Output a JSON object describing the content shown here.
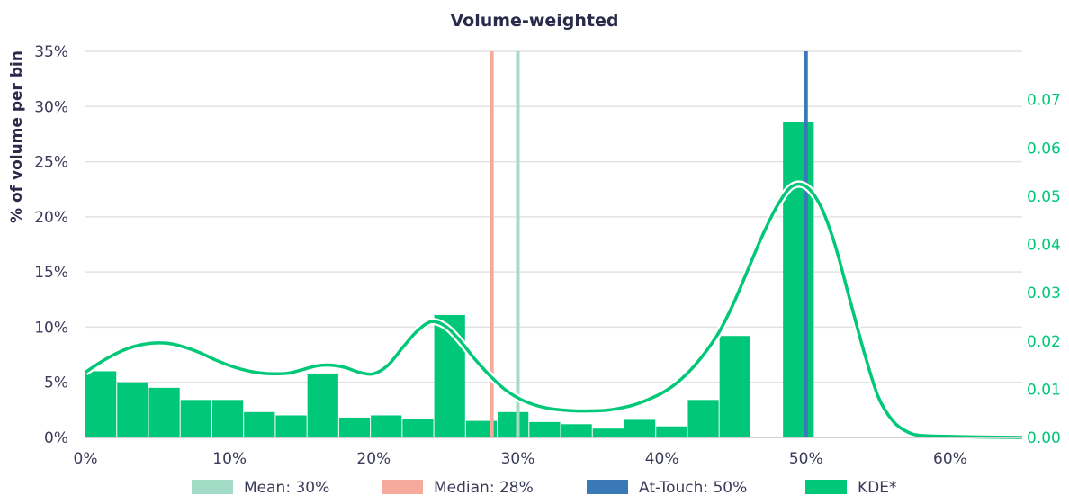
{
  "chart_data": {
    "type": "bar",
    "title": "Volume-weighted",
    "ylabel": "% of volume per bin",
    "xlabel": "",
    "xlim": [
      0,
      65
    ],
    "ylim": [
      0,
      35
    ],
    "y2lim": [
      0,
      0.08
    ],
    "x_ticks": [
      "0%",
      "10%",
      "20%",
      "30%",
      "40%",
      "50%",
      "60%"
    ],
    "y_ticks": [
      "0%",
      "5%",
      "10%",
      "15%",
      "20%",
      "25%",
      "30%",
      "35%"
    ],
    "y2_ticks": [
      "0.00",
      "0.01",
      "0.02",
      "0.03",
      "0.04",
      "0.05",
      "0.06",
      "0.07"
    ],
    "grid": true,
    "bins": [
      {
        "x0": 0.0,
        "x1": 2.2,
        "value": 6.0
      },
      {
        "x0": 2.2,
        "x1": 4.4,
        "value": 5.0
      },
      {
        "x0": 4.4,
        "x1": 6.6,
        "value": 4.5
      },
      {
        "x0": 6.6,
        "x1": 8.8,
        "value": 3.4
      },
      {
        "x0": 8.8,
        "x1": 11.0,
        "value": 3.4
      },
      {
        "x0": 11.0,
        "x1": 13.2,
        "value": 2.3
      },
      {
        "x0": 13.2,
        "x1": 15.4,
        "value": 2.0
      },
      {
        "x0": 15.4,
        "x1": 17.6,
        "value": 5.8
      },
      {
        "x0": 17.6,
        "x1": 19.8,
        "value": 1.8
      },
      {
        "x0": 19.8,
        "x1": 22.0,
        "value": 2.0
      },
      {
        "x0": 22.0,
        "x1": 24.2,
        "value": 1.7
      },
      {
        "x0": 24.2,
        "x1": 26.4,
        "value": 11.1
      },
      {
        "x0": 26.4,
        "x1": 28.6,
        "value": 1.5
      },
      {
        "x0": 28.6,
        "x1": 30.8,
        "value": 2.3
      },
      {
        "x0": 30.8,
        "x1": 33.0,
        "value": 1.4
      },
      {
        "x0": 33.0,
        "x1": 35.2,
        "value": 1.2
      },
      {
        "x0": 35.2,
        "x1": 37.4,
        "value": 0.8
      },
      {
        "x0": 37.4,
        "x1": 39.6,
        "value": 1.6
      },
      {
        "x0": 39.6,
        "x1": 41.8,
        "value": 1.0
      },
      {
        "x0": 41.8,
        "x1": 44.0,
        "value": 3.4
      },
      {
        "x0": 44.0,
        "x1": 46.2,
        "value": 9.2
      },
      {
        "x0": 46.2,
        "x1": 48.4,
        "value": 0
      },
      {
        "x0": 48.4,
        "x1": 50.6,
        "value": 28.6
      }
    ],
    "kde": {
      "x": [
        0,
        1,
        2,
        3,
        4,
        5,
        6,
        7,
        8,
        9,
        10,
        11,
        12,
        13,
        14,
        15,
        16,
        17,
        18,
        19,
        20,
        21,
        22,
        23,
        24,
        25,
        26,
        27,
        28,
        29,
        30,
        31,
        32,
        33,
        34,
        35,
        36,
        37,
        38,
        39,
        40,
        41,
        42,
        43,
        44,
        45,
        46,
        47,
        48,
        49,
        50,
        51,
        52,
        53,
        54,
        55,
        56,
        57,
        58,
        60,
        62,
        65
      ],
      "y": [
        0.0135,
        0.0155,
        0.0172,
        0.0185,
        0.0193,
        0.0196,
        0.0194,
        0.0186,
        0.0175,
        0.0161,
        0.0149,
        0.014,
        0.0134,
        0.0132,
        0.0133,
        0.014,
        0.0148,
        0.015,
        0.0145,
        0.0135,
        0.0132,
        0.015,
        0.0186,
        0.022,
        0.024,
        0.023,
        0.02,
        0.0163,
        0.013,
        0.0102,
        0.0082,
        0.0069,
        0.0061,
        0.0057,
        0.0055,
        0.0055,
        0.0056,
        0.006,
        0.0067,
        0.0078,
        0.0092,
        0.0112,
        0.014,
        0.0176,
        0.022,
        0.028,
        0.035,
        0.042,
        0.048,
        0.052,
        0.052,
        0.048,
        0.04,
        0.029,
        0.018,
        0.0085,
        0.0035,
        0.0012,
        0.0004,
        0.0002,
        0.0001,
        0.0
      ]
    },
    "vlines": [
      {
        "name": "Mean: 30%",
        "x": 30,
        "color": "#a3dcc6"
      },
      {
        "name": "Median: 28%",
        "x": 28.2,
        "color": "#f6aa9c"
      },
      {
        "name": "At-Touch: 50%",
        "x": 50,
        "color": "#3a78b8"
      }
    ],
    "series": [
      {
        "name": "Mean: 30%",
        "color": "#a3dcc6"
      },
      {
        "name": "Median: 28%",
        "color": "#f6aa9c"
      },
      {
        "name": "At-Touch: 50%",
        "color": "#3a78b8"
      },
      {
        "name": "KDE*",
        "color": "#00c878"
      }
    ],
    "legend_position": "bottom",
    "colors": {
      "bars": "#00c878",
      "kde": "#00c878",
      "grid": "#e2e2e2",
      "axis": "#d0d0d0",
      "right_axis_text": "#00c878"
    }
  }
}
